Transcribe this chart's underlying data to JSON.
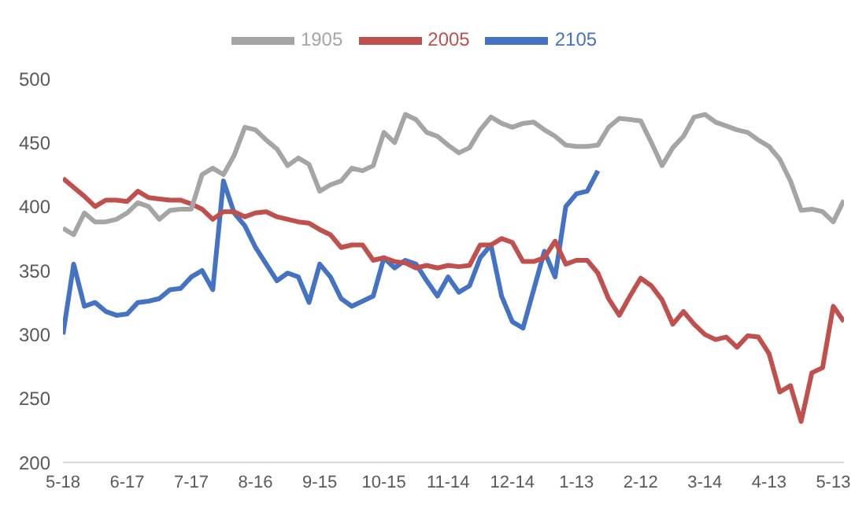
{
  "chart_data": {
    "type": "line",
    "categories": [
      "5-18",
      null,
      null,
      null,
      null,
      null,
      "6-17",
      null,
      null,
      null,
      null,
      null,
      "7-17",
      null,
      null,
      null,
      null,
      null,
      "8-16",
      null,
      null,
      null,
      null,
      null,
      "9-15",
      null,
      null,
      null,
      null,
      null,
      "10-15",
      null,
      null,
      null,
      null,
      null,
      "11-14",
      null,
      null,
      null,
      null,
      null,
      "12-14",
      null,
      null,
      null,
      null,
      null,
      "1-13",
      null,
      null,
      null,
      null,
      null,
      "2-12",
      null,
      null,
      null,
      null,
      null,
      "3-14",
      null,
      null,
      null,
      null,
      null,
      "4-13",
      null,
      null,
      null,
      null,
      null,
      "5-13",
      null
    ],
    "series": [
      {
        "name": "2105",
        "color": "#4472c4",
        "values": [
          300,
          355,
          322,
          325,
          318,
          315,
          316,
          325,
          326,
          328,
          335,
          336,
          345,
          350,
          335,
          420,
          395,
          385,
          368,
          355,
          342,
          348,
          345,
          325,
          355,
          345,
          328,
          322,
          326,
          330,
          360,
          352,
          358,
          355,
          342,
          330,
          345,
          333,
          338,
          360,
          370,
          330,
          310,
          305,
          335,
          365,
          345,
          400,
          410,
          412,
          428,
          null,
          null,
          null,
          null,
          null,
          null,
          null,
          null,
          null,
          null,
          null,
          null,
          null,
          null,
          null,
          null,
          null,
          null,
          null,
          null,
          null,
          null,
          null
        ]
      },
      {
        "name": "2005",
        "color": "#c0504d",
        "values": [
          422,
          415,
          408,
          400,
          405,
          405,
          404,
          412,
          407,
          406,
          405,
          405,
          402,
          398,
          390,
          396,
          396,
          392,
          395,
          396,
          392,
          390,
          388,
          387,
          382,
          378,
          368,
          370,
          370,
          358,
          360,
          357,
          356,
          352,
          354,
          352,
          354,
          353,
          354,
          370,
          370,
          375,
          372,
          357,
          357,
          360,
          373,
          355,
          358,
          358,
          348,
          328,
          315,
          330,
          344,
          338,
          327,
          308,
          318,
          308,
          300,
          296,
          298,
          290,
          299,
          298,
          285,
          255,
          260,
          232,
          270,
          274,
          322,
          310
        ]
      },
      {
        "name": "1905",
        "color": "#a5a5a5",
        "values": [
          383,
          378,
          395,
          388,
          388,
          390,
          395,
          403,
          400,
          390,
          397,
          398,
          398,
          425,
          430,
          425,
          440,
          462,
          460,
          452,
          445,
          432,
          438,
          433,
          412,
          417,
          420,
          430,
          428,
          432,
          458,
          450,
          472,
          468,
          458,
          455,
          448,
          442,
          446,
          460,
          470,
          465,
          462,
          465,
          466,
          460,
          455,
          448,
          447,
          447,
          448,
          462,
          469,
          468,
          467,
          450,
          432,
          446,
          455,
          470,
          472,
          466,
          463,
          460,
          458,
          452,
          447,
          437,
          420,
          397,
          398,
          396,
          388,
          405
        ]
      }
    ],
    "ylim": [
      200,
      500
    ],
    "yticks": [
      200,
      250,
      300,
      350,
      400,
      450,
      500
    ],
    "grid": false,
    "legend": "top",
    "marker": "none",
    "line_style": "solid"
  }
}
